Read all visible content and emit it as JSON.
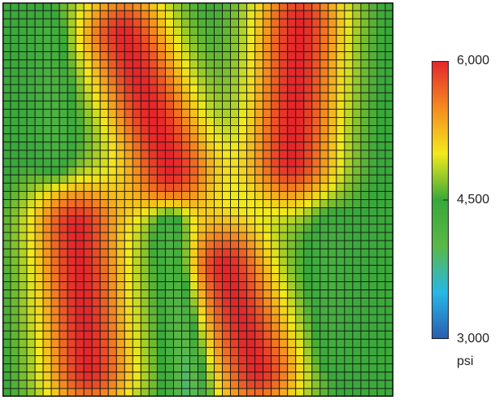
{
  "chart_data": {
    "type": "heatmap",
    "title": "",
    "xlabel": "",
    "ylabel": "",
    "grid": true,
    "grid_cols": 48,
    "grid_rows": 48,
    "colorbar": {
      "min": 3000,
      "max": 6000,
      "ticks": [
        {
          "value": 6000,
          "label": "6,000"
        },
        {
          "value": 4500,
          "label": "4,500"
        },
        {
          "value": 3000,
          "label": "3,000"
        }
      ],
      "unit": "psi",
      "colormap": [
        "#2a5cb0",
        "#27b8e6",
        "#5ab847",
        "#38a83a",
        "#f2ea1b",
        "#f58a20",
        "#e4262b"
      ],
      "placement": "right"
    },
    "background_value": 4450,
    "features": [
      {
        "kind": "high",
        "peak": 6000,
        "x0": 0.31,
        "y0": 0.08,
        "x1": 0.43,
        "y1": 0.42
      },
      {
        "kind": "high",
        "peak": 6000,
        "x0": 0.76,
        "y0": 0.05,
        "x1": 0.74,
        "y1": 0.4
      },
      {
        "kind": "high",
        "peak": 6000,
        "x0": 0.19,
        "y0": 0.57,
        "x1": 0.22,
        "y1": 0.93
      },
      {
        "kind": "high",
        "peak": 6000,
        "x0": 0.57,
        "y0": 0.67,
        "x1": 0.65,
        "y1": 0.93
      },
      {
        "kind": "low",
        "peak": 3700,
        "x0": 0.43,
        "y0": 0.56,
        "x1": 0.48,
        "y1": 0.98
      },
      {
        "kind": "low",
        "peak": 4150,
        "x0": 0.13,
        "y0": 0.08,
        "x1": 0.14,
        "y1": 0.42
      },
      {
        "kind": "low",
        "peak": 4250,
        "x0": 0.83,
        "y0": 0.55,
        "x1": 0.83,
        "y1": 0.9
      }
    ]
  }
}
